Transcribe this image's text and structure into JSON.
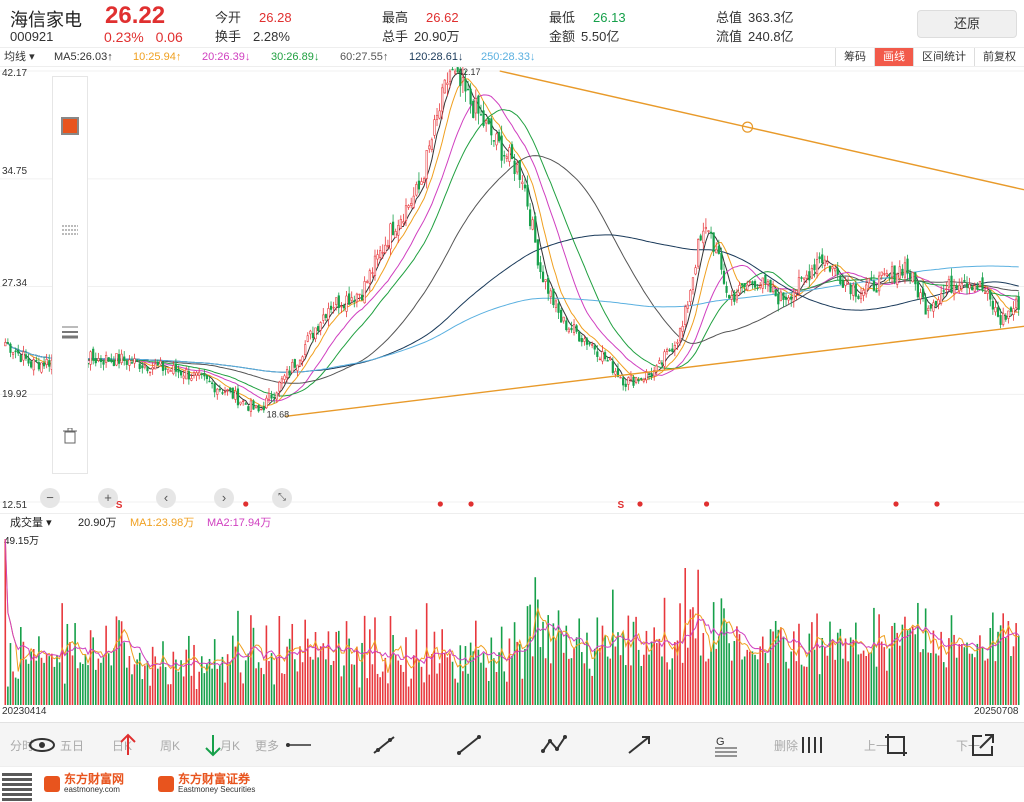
{
  "header": {
    "name": "海信家电",
    "price": "26.22",
    "code": "000921",
    "change_pct": "0.23%",
    "change_amt": "0.06",
    "quotes": [
      {
        "label": "今开",
        "value": "26.28",
        "color": "red"
      },
      {
        "label": "最高",
        "value": "26.62",
        "color": "red"
      },
      {
        "label": "最低",
        "value": "26.13",
        "color": "green"
      },
      {
        "label": "总值",
        "value": "363.3亿",
        "color": "plain"
      },
      {
        "label": "换手",
        "value": "2.28%",
        "color": "plain"
      },
      {
        "label": "总手",
        "value": "20.90万",
        "color": "plain"
      },
      {
        "label": "金额",
        "value": "5.50亿",
        "color": "plain"
      },
      {
        "label": "流值",
        "value": "240.8亿",
        "color": "plain"
      }
    ],
    "restore_label": "还原"
  },
  "ma_bar": {
    "selector": "均线",
    "items": [
      {
        "text": "MA5:26.03↑",
        "color": "#333333"
      },
      {
        "text": "10:25.94↑",
        "color": "#f0a020"
      },
      {
        "text": "20:26.39↓",
        "color": "#d040c0"
      },
      {
        "text": "30:26.89↓",
        "color": "#20a040"
      },
      {
        "text": "60:27.55↑",
        "color": "#555555"
      },
      {
        "text": "120:28.61↓",
        "color": "#1a3a5a"
      },
      {
        "text": "250:28.33↓",
        "color": "#5ab0e0"
      }
    ],
    "tabs": [
      {
        "label": "筹码",
        "active": false
      },
      {
        "label": "画线",
        "active": true
      },
      {
        "label": "区间统计",
        "active": false
      },
      {
        "label": "前复权",
        "active": false
      }
    ]
  },
  "yaxis": [
    "42.17",
    "34.75",
    "27.34",
    "19.92",
    "12.51"
  ],
  "vol_bar": {
    "selector": "成交量",
    "value": "20.90万",
    "ma1": "MA1:23.98万",
    "ma2": "MA2:17.94万",
    "ymax": "49.15万"
  },
  "dates": {
    "start": "20230414",
    "end": "20250708"
  },
  "markers": {
    "high": "42.17",
    "low": "18.68",
    "s": "S"
  },
  "bottom": {
    "labels": [
      "分时",
      "五日",
      "日K",
      "周K",
      "月K",
      "更多",
      "删除",
      "上一",
      "下一"
    ]
  },
  "footer": {
    "logo1": "东方财富网",
    "logo1_sub": "eastmoney.com",
    "logo2": "东方财富证券",
    "logo2_sub": "Eastmoney Securities"
  },
  "chart_data": {
    "type": "candlestick",
    "period_start": "20230414",
    "period_end": "20250708",
    "ylim": [
      12.51,
      42.17
    ],
    "yticks": [
      42.17,
      34.75,
      27.34,
      19.92,
      12.51
    ],
    "anchors": [
      [
        0,
        23.5
      ],
      [
        10,
        22.0
      ],
      [
        25,
        22.4
      ],
      [
        45,
        22.3
      ],
      [
        70,
        21.4
      ],
      [
        85,
        20.2
      ],
      [
        98,
        18.7
      ],
      [
        110,
        21.5
      ],
      [
        125,
        26.0
      ],
      [
        138,
        27.0
      ],
      [
        150,
        31.5
      ],
      [
        160,
        34.0
      ],
      [
        168,
        39.5
      ],
      [
        172,
        42.17
      ],
      [
        180,
        40.0
      ],
      [
        190,
        37.2
      ],
      [
        200,
        35.0
      ],
      [
        207,
        28.5
      ],
      [
        215,
        25.0
      ],
      [
        228,
        23.2
      ],
      [
        240,
        20.8
      ],
      [
        252,
        21.5
      ],
      [
        262,
        24.5
      ],
      [
        268,
        30.0
      ],
      [
        272,
        31.5
      ],
      [
        280,
        26.5
      ],
      [
        290,
        27.8
      ],
      [
        300,
        26.5
      ],
      [
        308,
        27.5
      ],
      [
        315,
        29.5
      ],
      [
        322,
        28.2
      ],
      [
        330,
        27.0
      ],
      [
        340,
        27.8
      ],
      [
        348,
        28.8
      ],
      [
        356,
        26.0
      ],
      [
        363,
        27.0
      ],
      [
        370,
        28.0
      ],
      [
        378,
        27.2
      ],
      [
        385,
        25.0
      ],
      [
        392,
        26.22
      ]
    ],
    "volume_ylim": [
      0,
      49.15
    ],
    "volume_unit": "万",
    "trendlines": [
      {
        "from": [
          0.488,
          42.17
        ],
        "to": [
          1.0,
          34.0
        ],
        "color": "#e89a2a"
      },
      {
        "from": [
          0.278,
          18.4
        ],
        "to": [
          1.0,
          24.6
        ],
        "color": "#e89a2a"
      }
    ]
  }
}
